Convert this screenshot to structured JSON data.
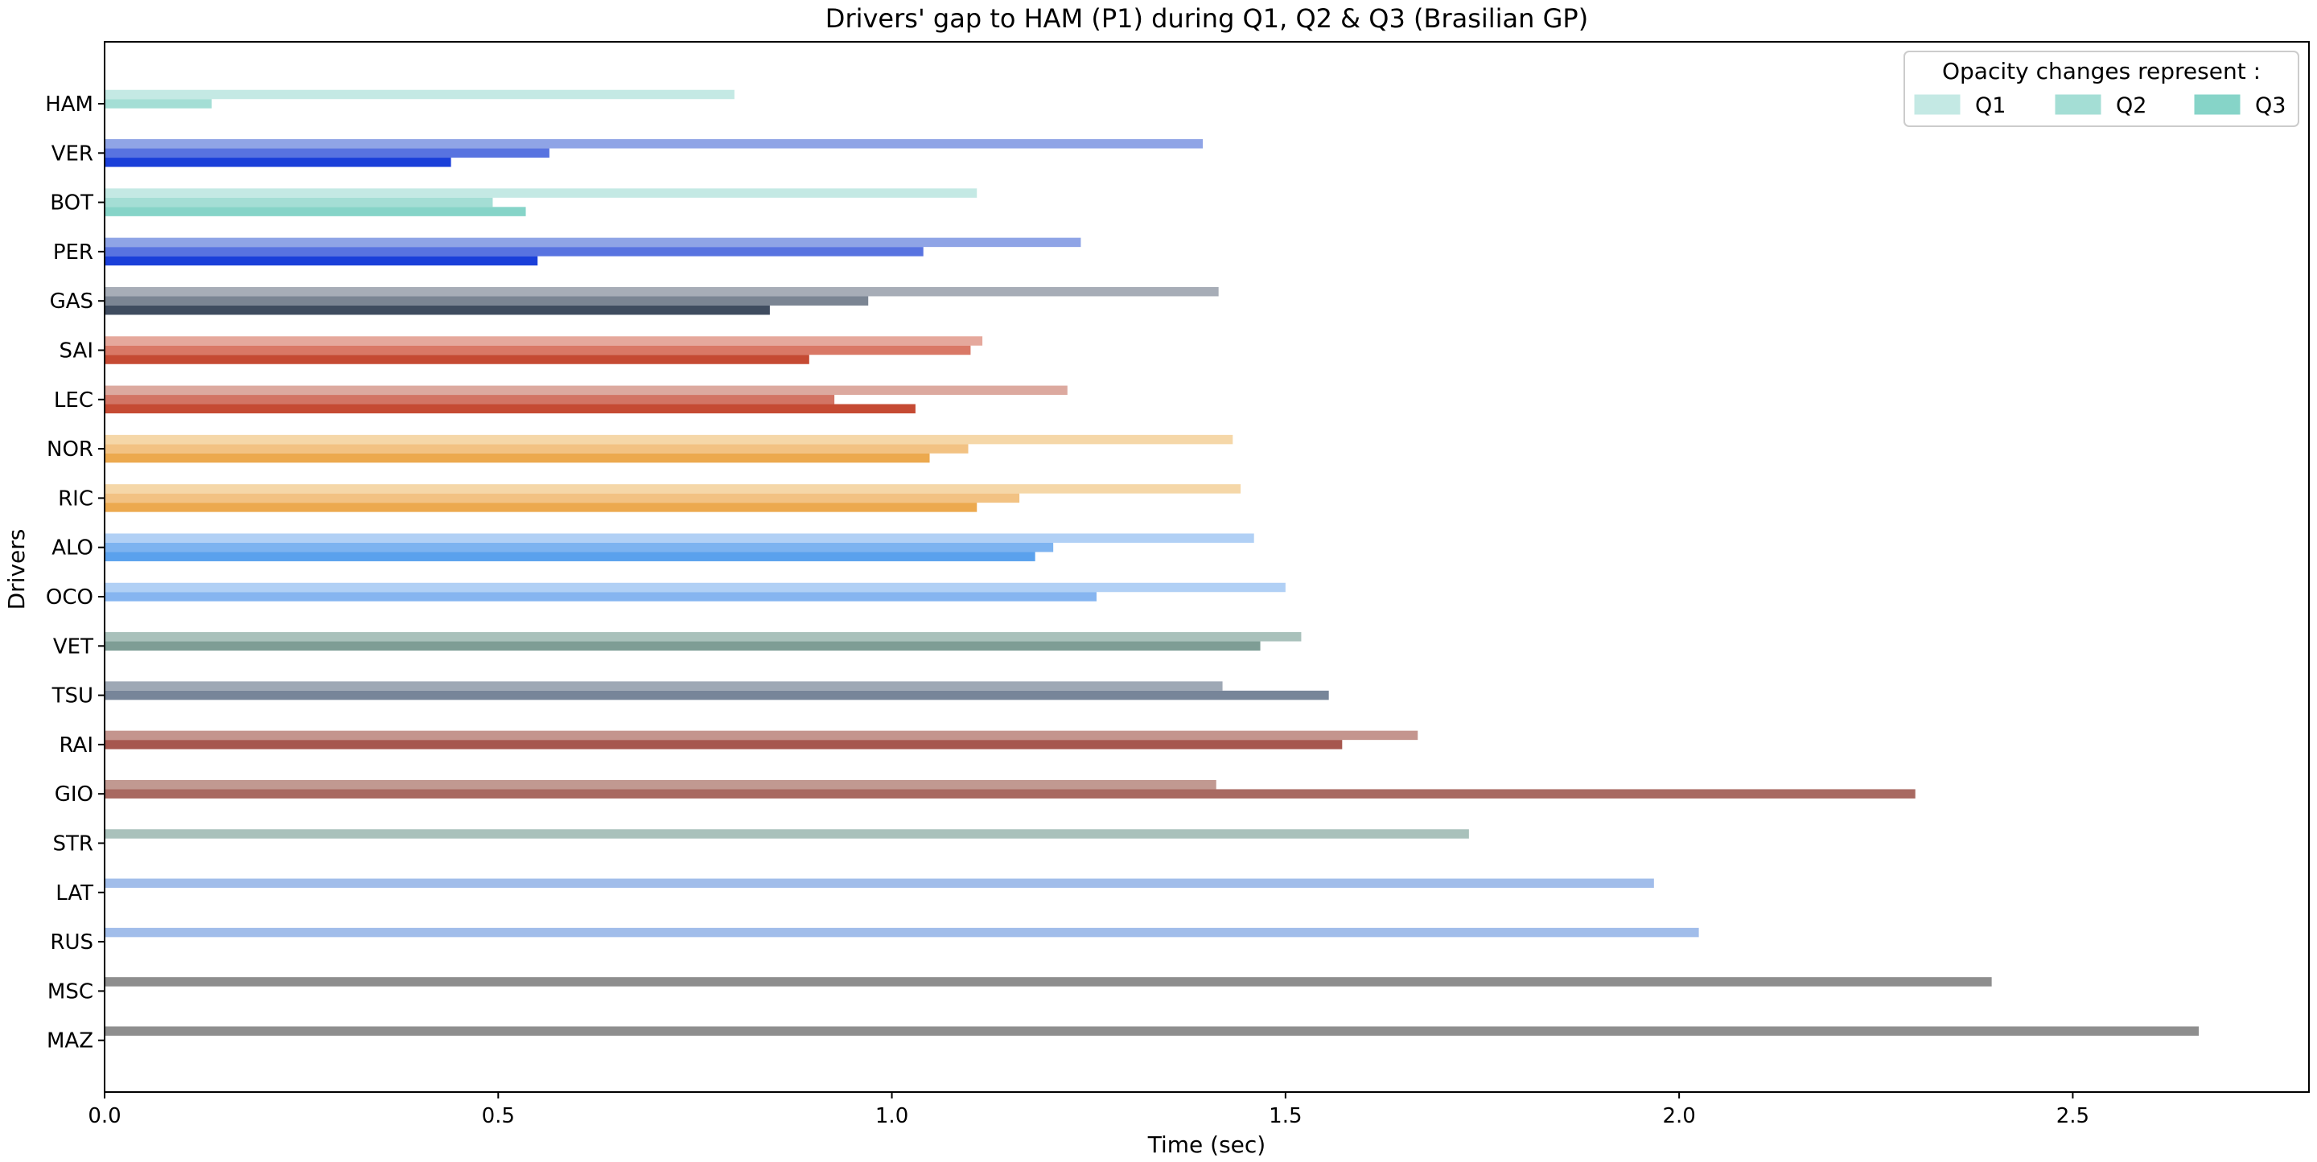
{
  "chart_data": {
    "type": "bar",
    "orientation": "horizontal",
    "title": "Drivers' gap to HAM (P1) during Q1, Q2 & Q3 (Brasilian GP)",
    "xlabel": "Time (sec)",
    "ylabel": "Drivers",
    "xlim": [
      0,
      2.8
    ],
    "xticks": [
      "0.0",
      "0.5",
      "1.0",
      "1.5",
      "2.0",
      "2.5"
    ],
    "grid": false,
    "legend": {
      "title": "Opacity changes represent :",
      "placement": "top-right",
      "entries": [
        {
          "label": "Q1",
          "color": "#c4e9e4"
        },
        {
          "label": "Q2",
          "color": "#a4ded5"
        },
        {
          "label": "Q3",
          "color": "#86d4c8"
        }
      ]
    },
    "series_names": [
      "Q1",
      "Q2",
      "Q3"
    ],
    "drivers": [
      {
        "name": "HAM",
        "team_colors": [
          "#c4e9e4",
          "#a4ded5",
          "#86d4c8"
        ],
        "values": [
          0.8,
          0.136,
          null
        ]
      },
      {
        "name": "VER",
        "team_colors": [
          "#8fa4e6",
          "#5873e0",
          "#1a3fd9"
        ],
        "values": [
          1.395,
          0.565,
          0.44
        ]
      },
      {
        "name": "BOT",
        "team_colors": [
          "#c4e9e4",
          "#a4ded5",
          "#86d4c8"
        ],
        "values": [
          1.108,
          0.493,
          0.535
        ]
      },
      {
        "name": "PER",
        "team_colors": [
          "#8fa4e6",
          "#5873e0",
          "#1a3fd9"
        ],
        "values": [
          1.24,
          1.04,
          0.55
        ]
      },
      {
        "name": "GAS",
        "team_colors": [
          "#a7adb7",
          "#7b8593",
          "#3f4c5f"
        ],
        "values": [
          1.415,
          0.97,
          0.845
        ]
      },
      {
        "name": "SAI",
        "team_colors": [
          "#e5a89c",
          "#d97866",
          "#c54a33"
        ],
        "values": [
          1.115,
          1.1,
          0.895
        ]
      },
      {
        "name": "LEC",
        "team_colors": [
          "#dca99f",
          "#d27464",
          "#c54a33"
        ],
        "values": [
          1.223,
          0.927,
          1.03
        ]
      },
      {
        "name": "NOR",
        "team_colors": [
          "#f5d7a8",
          "#f2c283",
          "#eca94e"
        ],
        "values": [
          1.433,
          1.097,
          1.048
        ]
      },
      {
        "name": "RIC",
        "team_colors": [
          "#f5d7a8",
          "#f2c283",
          "#eca94e"
        ],
        "values": [
          1.443,
          1.162,
          1.108
        ]
      },
      {
        "name": "ALO",
        "team_colors": [
          "#b1d0f5",
          "#7db3f0",
          "#5aa1ed"
        ],
        "values": [
          1.46,
          1.205,
          1.182
        ]
      },
      {
        "name": "OCO",
        "team_colors": [
          "#b1d0f5",
          "#86b5f0",
          null
        ],
        "values": [
          1.5,
          1.26,
          null
        ]
      },
      {
        "name": "VET",
        "team_colors": [
          "#a9c1bb",
          "#7e9d95",
          null
        ],
        "values": [
          1.52,
          1.468,
          null
        ]
      },
      {
        "name": "TSU",
        "team_colors": [
          "#9ea8b5",
          "#778599",
          null
        ],
        "values": [
          1.42,
          1.555,
          null
        ]
      },
      {
        "name": "RAI",
        "team_colors": [
          "#c4958e",
          "#a6574e",
          null
        ],
        "values": [
          1.668,
          1.572,
          null
        ]
      },
      {
        "name": "GIO",
        "team_colors": [
          "#c19991",
          "#a86961",
          null
        ],
        "values": [
          1.412,
          2.3,
          null
        ]
      },
      {
        "name": "STR",
        "team_colors": [
          "#a9c1bb",
          null,
          null
        ],
        "values": [
          1.733,
          null,
          null
        ]
      },
      {
        "name": "LAT",
        "team_colors": [
          "#a1bdea",
          null,
          null
        ],
        "values": [
          1.968,
          null,
          null
        ]
      },
      {
        "name": "RUS",
        "team_colors": [
          "#a1bdea",
          null,
          null
        ],
        "values": [
          2.025,
          null,
          null
        ]
      },
      {
        "name": "MSC",
        "team_colors": [
          "#8e8e8e",
          null,
          null
        ],
        "values": [
          2.397,
          null,
          null
        ]
      },
      {
        "name": "MAZ",
        "team_colors": [
          "#8e8e8e",
          null,
          null
        ],
        "values": [
          2.66,
          null,
          null
        ]
      }
    ]
  }
}
